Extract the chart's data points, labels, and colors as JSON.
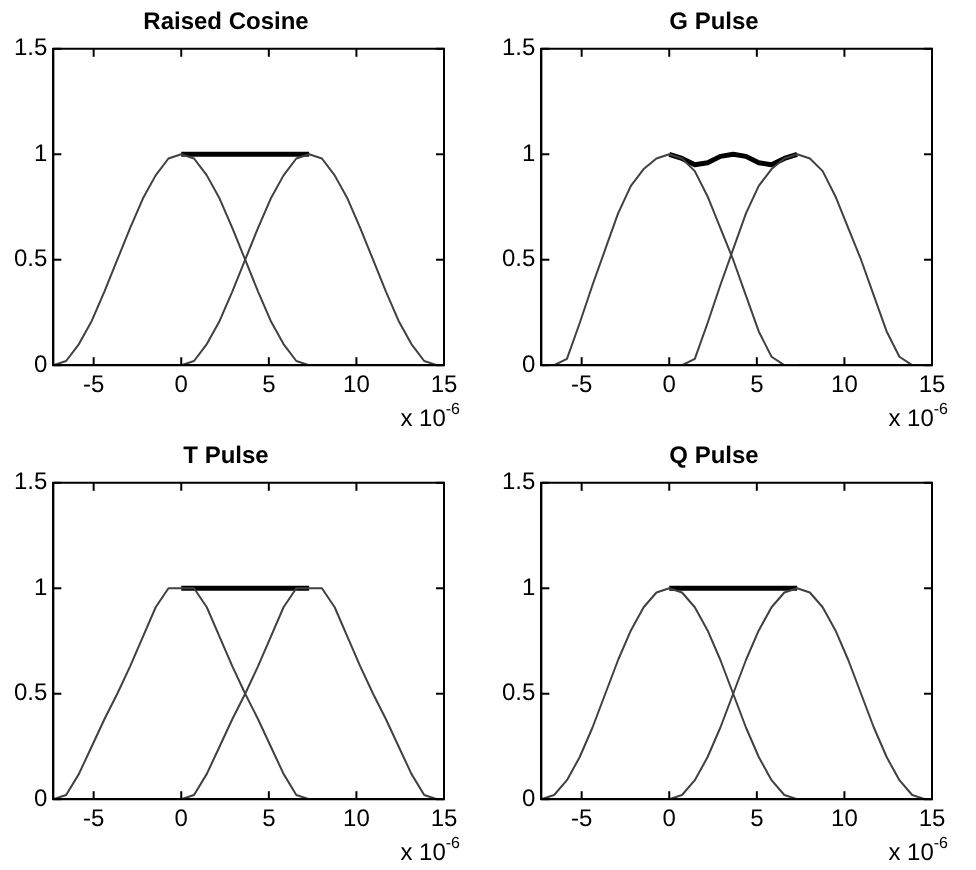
{
  "chart_data": [
    {
      "type": "line",
      "title": "Raised Cosine",
      "xlim": [
        -7.3,
        15
      ],
      "ylim": [
        0,
        1.5
      ],
      "xticks": [
        -5,
        0,
        5,
        10,
        15
      ],
      "yticks": [
        0,
        0.5,
        1,
        1.5
      ],
      "grid": false,
      "annotations": [
        "x 10$^{-6}$"
      ],
      "series": [
        {
          "color": "#404040",
          "x": [
            -7.3,
            -6.57,
            -5.84,
            -5.11,
            -4.38,
            -3.65,
            -2.92,
            -2.19,
            -1.46,
            -0.73,
            0,
            0.73,
            1.46,
            2.19,
            2.92,
            3.65,
            4.38,
            5.11,
            5.84,
            6.57,
            7.3
          ],
          "values": [
            0,
            0.02,
            0.1,
            0.21,
            0.35,
            0.5,
            0.65,
            0.79,
            0.9,
            0.98,
            1,
            0.98,
            0.9,
            0.79,
            0.65,
            0.5,
            0.35,
            0.21,
            0.1,
            0.02,
            0
          ]
        },
        {
          "color": "#404040",
          "x": [
            0,
            0.73,
            1.46,
            2.19,
            2.92,
            3.65,
            4.38,
            5.11,
            5.84,
            6.57,
            7.3,
            8.03,
            8.76,
            9.49,
            10.22,
            10.95,
            11.68,
            12.41,
            13.14,
            13.87,
            14.6
          ],
          "values": [
            0,
            0.02,
            0.1,
            0.21,
            0.35,
            0.5,
            0.65,
            0.79,
            0.9,
            0.98,
            1,
            0.98,
            0.9,
            0.79,
            0.65,
            0.5,
            0.35,
            0.21,
            0.1,
            0.02,
            0
          ]
        },
        {
          "color": "#000000",
          "x": [
            0,
            0.73,
            1.46,
            2.19,
            2.92,
            3.65,
            4.38,
            5.11,
            5.84,
            6.57,
            7.3
          ],
          "values": [
            1,
            1,
            1,
            1,
            1,
            1,
            1,
            1,
            1,
            1,
            1
          ]
        }
      ]
    },
    {
      "type": "line",
      "title": "G Pulse",
      "xlim": [
        -7.3,
        15
      ],
      "ylim": [
        0,
        1.5
      ],
      "xticks": [
        -5,
        0,
        5,
        10,
        15
      ],
      "yticks": [
        0,
        0.5,
        1,
        1.5
      ],
      "grid": false,
      "annotations": [
        "x 10$^{-6}$"
      ],
      "series": [
        {
          "color": "#404040",
          "x": [
            -7.3,
            -6.57,
            -5.84,
            -5.11,
            -4.38,
            -3.65,
            -2.92,
            -2.19,
            -1.46,
            -0.73,
            0,
            0.73,
            1.46,
            2.19,
            2.92,
            3.65,
            4.38,
            5.11,
            5.84,
            6.57,
            7.3
          ],
          "values": [
            0,
            0,
            0.03,
            0.2,
            0.38,
            0.55,
            0.72,
            0.85,
            0.93,
            0.98,
            1,
            0.98,
            0.92,
            0.8,
            0.65,
            0.5,
            0.33,
            0.16,
            0.04,
            0,
            0
          ]
        },
        {
          "color": "#404040",
          "x": [
            0,
            0.73,
            1.46,
            2.19,
            2.92,
            3.65,
            4.38,
            5.11,
            5.84,
            6.57,
            7.3,
            8.03,
            8.76,
            9.49,
            10.22,
            10.95,
            11.68,
            12.41,
            13.14,
            13.87,
            14.6
          ],
          "values": [
            0,
            0,
            0.03,
            0.2,
            0.38,
            0.55,
            0.72,
            0.85,
            0.93,
            0.98,
            1,
            0.98,
            0.92,
            0.8,
            0.65,
            0.5,
            0.33,
            0.16,
            0.04,
            0,
            0
          ]
        },
        {
          "color": "#000000",
          "x": [
            0,
            0.73,
            1.46,
            2.19,
            2.92,
            3.65,
            4.38,
            5.11,
            5.84,
            6.57,
            7.3
          ],
          "values": [
            1,
            0.98,
            0.95,
            0.96,
            0.99,
            1,
            0.99,
            0.96,
            0.95,
            0.98,
            1
          ]
        }
      ]
    },
    {
      "type": "line",
      "title": "T Pulse",
      "xlim": [
        -7.3,
        15
      ],
      "ylim": [
        0,
        1.5
      ],
      "xticks": [
        -5,
        0,
        5,
        10,
        15
      ],
      "yticks": [
        0,
        0.5,
        1,
        1.5
      ],
      "grid": false,
      "annotations": [
        "x 10$^{-6}$"
      ],
      "series": [
        {
          "color": "#404040",
          "x": [
            -7.3,
            -6.57,
            -5.84,
            -5.11,
            -4.38,
            -3.65,
            -2.92,
            -2.19,
            -1.46,
            -0.73,
            0,
            0.73,
            1.46,
            2.19,
            2.92,
            3.65,
            4.38,
            5.11,
            5.84,
            6.57,
            7.3
          ],
          "values": [
            0,
            0.02,
            0.12,
            0.25,
            0.38,
            0.5,
            0.63,
            0.77,
            0.91,
            1,
            1,
            1,
            0.91,
            0.77,
            0.63,
            0.5,
            0.38,
            0.25,
            0.12,
            0.02,
            0
          ]
        },
        {
          "color": "#404040",
          "x": [
            0,
            0.73,
            1.46,
            2.19,
            2.92,
            3.65,
            4.38,
            5.11,
            5.84,
            6.57,
            7.3,
            8.03,
            8.76,
            9.49,
            10.22,
            10.95,
            11.68,
            12.41,
            13.14,
            13.87,
            14.6
          ],
          "values": [
            0,
            0.02,
            0.12,
            0.25,
            0.38,
            0.5,
            0.63,
            0.77,
            0.91,
            1,
            1,
            1,
            0.91,
            0.77,
            0.63,
            0.5,
            0.38,
            0.25,
            0.12,
            0.02,
            0
          ]
        },
        {
          "color": "#000000",
          "x": [
            0,
            0.73,
            1.46,
            2.19,
            2.92,
            3.65,
            4.38,
            5.11,
            5.84,
            6.57,
            7.3
          ],
          "values": [
            1,
            1,
            1,
            1,
            1,
            1,
            1,
            1,
            1,
            1,
            1
          ]
        }
      ]
    },
    {
      "type": "line",
      "title": "Q Pulse",
      "xlim": [
        -7.3,
        15
      ],
      "ylim": [
        0,
        1.5
      ],
      "xticks": [
        -5,
        0,
        5,
        10,
        15
      ],
      "yticks": [
        0,
        0.5,
        1,
        1.5
      ],
      "grid": false,
      "annotations": [
        "x 10$^{-6}$"
      ],
      "series": [
        {
          "color": "#404040",
          "x": [
            -7.3,
            -6.57,
            -5.84,
            -5.11,
            -4.38,
            -3.65,
            -2.92,
            -2.19,
            -1.46,
            -0.73,
            0,
            0.73,
            1.46,
            2.19,
            2.92,
            3.65,
            4.38,
            5.11,
            5.84,
            6.57,
            7.3
          ],
          "values": [
            0,
            0.02,
            0.09,
            0.2,
            0.34,
            0.5,
            0.66,
            0.8,
            0.91,
            0.98,
            1,
            0.98,
            0.91,
            0.8,
            0.66,
            0.5,
            0.34,
            0.2,
            0.09,
            0.02,
            0
          ]
        },
        {
          "color": "#404040",
          "x": [
            0,
            0.73,
            1.46,
            2.19,
            2.92,
            3.65,
            4.38,
            5.11,
            5.84,
            6.57,
            7.3,
            8.03,
            8.76,
            9.49,
            10.22,
            10.95,
            11.68,
            12.41,
            13.14,
            13.87,
            14.6
          ],
          "values": [
            0,
            0.02,
            0.09,
            0.2,
            0.34,
            0.5,
            0.66,
            0.8,
            0.91,
            0.98,
            1,
            0.98,
            0.91,
            0.8,
            0.66,
            0.5,
            0.34,
            0.2,
            0.09,
            0.02,
            0
          ]
        },
        {
          "color": "#000000",
          "x": [
            0,
            0.73,
            1.46,
            2.19,
            2.92,
            3.65,
            4.38,
            5.11,
            5.84,
            6.57,
            7.3
          ],
          "values": [
            1,
            1,
            1,
            1,
            1,
            1,
            1,
            1,
            1,
            1,
            1
          ]
        }
      ]
    }
  ]
}
